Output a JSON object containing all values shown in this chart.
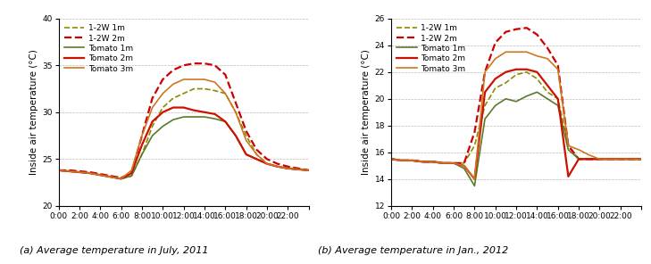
{
  "title_a": "(a) Average temperature in July, 2011",
  "title_b": "(b) Average temperature in Jan., 2012",
  "ylabel": "Inside air temperature (°C)",
  "x_ticks": [
    "0:00",
    "2:00",
    "4:00",
    "6:00",
    "8:00",
    "10:00",
    "12:00",
    "14:00",
    "16:00",
    "18:00",
    "20:00",
    "22:00",
    ""
  ],
  "ylim_a": [
    20,
    40
  ],
  "ylim_b": [
    12,
    26
  ],
  "yticks_a": [
    20,
    25,
    30,
    35,
    40
  ],
  "yticks_b": [
    12,
    14,
    16,
    18,
    20,
    22,
    24,
    26
  ],
  "colors": {
    "w1m": "#8B8B00",
    "w2m": "#CC0000",
    "t1m": "#5A7A2A",
    "t2m": "#CC1100",
    "t3m": "#CC7722"
  },
  "legend_labels": [
    "1-2W 1m",
    "1-2W 2m",
    "Tomato 1m",
    "Tomato 2m",
    "Tomato 3m"
  ],
  "plot_a": {
    "w1m": [
      23.8,
      23.7,
      23.6,
      23.5,
      23.3,
      23.1,
      22.9,
      23.2,
      25.5,
      28.5,
      30.5,
      31.5,
      32.0,
      32.5,
      32.5,
      32.3,
      32.0,
      30.0,
      27.5,
      25.5,
      24.5,
      24.2,
      24.0,
      23.9,
      23.8
    ],
    "w2m": [
      23.8,
      23.8,
      23.7,
      23.6,
      23.4,
      23.2,
      23.0,
      23.5,
      27.5,
      31.5,
      33.5,
      34.5,
      35.0,
      35.2,
      35.2,
      35.0,
      34.0,
      31.0,
      28.0,
      26.0,
      25.0,
      24.5,
      24.2,
      24.0,
      23.8
    ],
    "t1m": [
      23.8,
      23.7,
      23.6,
      23.5,
      23.3,
      23.1,
      22.9,
      23.2,
      25.5,
      27.5,
      28.5,
      29.2,
      29.5,
      29.5,
      29.5,
      29.3,
      29.0,
      27.5,
      25.5,
      25.0,
      24.5,
      24.2,
      24.0,
      23.9,
      23.8
    ],
    "t2m": [
      23.8,
      23.7,
      23.6,
      23.5,
      23.3,
      23.1,
      22.9,
      23.5,
      26.5,
      29.0,
      30.0,
      30.5,
      30.5,
      30.2,
      30.0,
      29.8,
      29.0,
      27.5,
      25.5,
      25.0,
      24.5,
      24.2,
      24.0,
      23.9,
      23.8
    ],
    "t3m": [
      23.8,
      23.7,
      23.6,
      23.5,
      23.3,
      23.1,
      22.9,
      23.8,
      27.5,
      30.5,
      32.0,
      33.0,
      33.5,
      33.5,
      33.5,
      33.2,
      32.0,
      30.0,
      27.0,
      25.5,
      24.5,
      24.2,
      24.0,
      23.9,
      23.8
    ]
  },
  "plot_b": {
    "w1m": [
      15.5,
      15.4,
      15.4,
      15.3,
      15.3,
      15.2,
      15.2,
      15.2,
      16.5,
      19.5,
      20.8,
      21.2,
      21.8,
      22.0,
      21.5,
      20.5,
      20.0,
      16.5,
      15.5,
      15.5,
      15.5,
      15.5,
      15.5,
      15.5,
      15.5
    ],
    "w2m": [
      15.5,
      15.4,
      15.4,
      15.3,
      15.3,
      15.2,
      15.2,
      15.2,
      17.5,
      22.0,
      24.2,
      25.0,
      25.2,
      25.3,
      24.8,
      23.8,
      22.5,
      16.5,
      15.5,
      15.5,
      15.5,
      15.5,
      15.5,
      15.5,
      15.5
    ],
    "t1m": [
      15.5,
      15.4,
      15.4,
      15.3,
      15.3,
      15.2,
      15.2,
      14.8,
      13.5,
      18.5,
      19.5,
      20.0,
      19.8,
      20.2,
      20.5,
      20.0,
      19.5,
      16.2,
      15.5,
      15.5,
      15.5,
      15.5,
      15.5,
      15.5,
      15.5
    ],
    "t2m": [
      15.5,
      15.4,
      15.4,
      15.3,
      15.3,
      15.2,
      15.2,
      15.0,
      14.0,
      20.5,
      21.5,
      22.0,
      22.2,
      22.2,
      22.0,
      21.0,
      20.0,
      14.2,
      15.5,
      15.5,
      15.5,
      15.5,
      15.5,
      15.5,
      15.5
    ],
    "t3m": [
      15.5,
      15.4,
      15.4,
      15.3,
      15.3,
      15.2,
      15.2,
      15.0,
      14.0,
      22.0,
      23.0,
      23.5,
      23.5,
      23.5,
      23.2,
      23.0,
      22.2,
      16.5,
      16.2,
      15.8,
      15.5,
      15.5,
      15.5,
      15.5,
      15.5
    ]
  }
}
